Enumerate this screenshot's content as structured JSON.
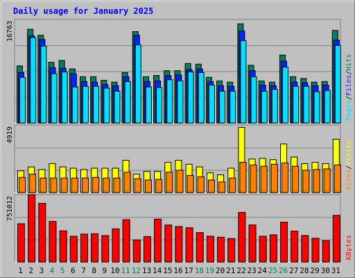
{
  "title": "Daily usage for January 2025",
  "colors": {
    "background": "#c0c0c0",
    "title": "#0000ff",
    "hits": "#00805c",
    "files": "#0024ff",
    "pages": "#00e0ff",
    "visits": "#ffff00",
    "sites": "#ff8000",
    "kbytes": "#ff0000",
    "weekend_label": "#00805c",
    "weekday_label": "#000000"
  },
  "chart_data": [
    {
      "type": "bar",
      "name": "hits-files-pages",
      "axis_max_label": "16763",
      "ymax": 16763,
      "legend": [
        "Pages",
        "/",
        "Files",
        "/",
        "Hits"
      ],
      "series": [
        {
          "name": "Hits",
          "values": [
            9500,
            15600,
            14600,
            10100,
            10400,
            9000,
            7700,
            7700,
            7100,
            6800,
            8400,
            15200,
            7700,
            7900,
            8700,
            8700,
            9900,
            9800,
            7600,
            7000,
            6800,
            16500,
            9600,
            7000,
            6800,
            11300,
            7700,
            7400,
            6800,
            6900,
            15400
          ]
        },
        {
          "name": "Files",
          "values": [
            8400,
            14500,
            13900,
            9200,
            9100,
            8200,
            6900,
            6800,
            6400,
            6200,
            7700,
            14600,
            6900,
            7000,
            7900,
            8000,
            8900,
            9000,
            6900,
            6200,
            6100,
            15300,
            8700,
            6300,
            6200,
            10300,
            6800,
            6700,
            6200,
            6300,
            13800
          ]
        },
        {
          "name": "Pages",
          "values": [
            7600,
            14200,
            12800,
            8200,
            8500,
            6000,
            6100,
            6100,
            5800,
            5300,
            6900,
            13000,
            6000,
            5900,
            7200,
            7000,
            8500,
            8400,
            6300,
            5300,
            5300,
            13700,
            7700,
            5300,
            5600,
            9300,
            6100,
            6100,
            5200,
            5400,
            12900
          ]
        }
      ]
    },
    {
      "type": "bar",
      "name": "visits-sites",
      "axis_max_label": "4919",
      "ymax": 4919,
      "legend": [
        "Sites",
        "/",
        "Visits"
      ],
      "series": [
        {
          "name": "Visits",
          "values": [
            1650,
            1950,
            1750,
            2200,
            1950,
            1850,
            1750,
            1850,
            1850,
            1850,
            2450,
            1400,
            1600,
            1600,
            2300,
            2450,
            2150,
            1950,
            1500,
            1350,
            1850,
            4950,
            2550,
            2600,
            2500,
            3700,
            2700,
            2200,
            2300,
            2200,
            4050
          ]
        },
        {
          "name": "Sites",
          "values": [
            1150,
            1400,
            1100,
            1100,
            1100,
            1100,
            1100,
            1150,
            1100,
            1100,
            1550,
            1050,
            950,
            1000,
            1550,
            1700,
            1300,
            1200,
            950,
            800,
            1100,
            2300,
            2100,
            2000,
            2150,
            2250,
            2000,
            1700,
            1750,
            1800,
            2100
          ]
        }
      ]
    },
    {
      "type": "bar",
      "name": "kbytes",
      "axis_max_label": "751012",
      "ymax": 751012,
      "legend": [
        "KBytes"
      ],
      "series": [
        {
          "name": "KBytes",
          "values": [
            445000,
            782000,
            682000,
            472000,
            363000,
            299000,
            324000,
            329000,
            307000,
            386000,
            492000,
            257000,
            296000,
            498000,
            430000,
            412000,
            398000,
            342000,
            300000,
            288000,
            273000,
            576000,
            431000,
            299000,
            316000,
            463000,
            359000,
            308000,
            276000,
            248000,
            542000
          ]
        }
      ]
    }
  ],
  "x_labels": [
    "1",
    "2",
    "3",
    "4",
    "5",
    "6",
    "7",
    "8",
    "9",
    "10",
    "11",
    "12",
    "13",
    "14",
    "15",
    "16",
    "17",
    "18",
    "19",
    "20",
    "21",
    "22",
    "23",
    "24",
    "25",
    "26",
    "27",
    "28",
    "29",
    "30",
    "31"
  ],
  "weekend_days": [
    4,
    5,
    11,
    12,
    18,
    19,
    25,
    26
  ]
}
